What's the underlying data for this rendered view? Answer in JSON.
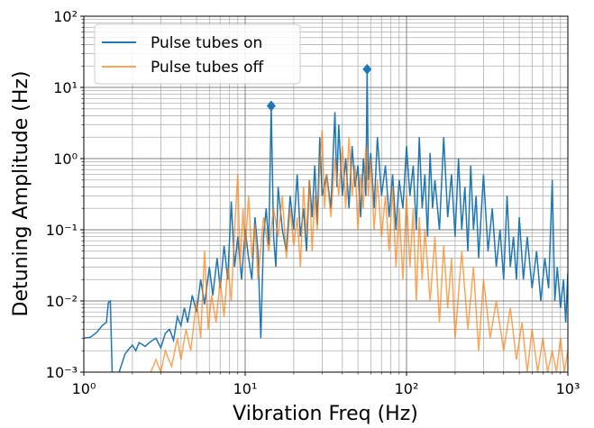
{
  "chart_data": {
    "type": "line",
    "xlabel": "Vibration Freq (Hz)",
    "ylabel": "Detuning Amplitude (Hz)",
    "log_x": true,
    "log_y": true,
    "grid": true,
    "minor_grid": true,
    "legend": "upper left",
    "xlim": [
      1,
      1000
    ],
    "ylim": [
      0.001,
      100
    ],
    "xticks": [
      {
        "value": 1,
        "label": "10⁰"
      },
      {
        "value": 10,
        "label": "10¹"
      },
      {
        "value": 100,
        "label": "10²"
      },
      {
        "value": 1000,
        "label": "10³"
      }
    ],
    "yticks": [
      {
        "value": 0.001,
        "label": "10⁻³"
      },
      {
        "value": 0.01,
        "label": "10⁻²"
      },
      {
        "value": 0.1,
        "label": "10⁻¹"
      },
      {
        "value": 1,
        "label": "10⁰"
      },
      {
        "value": 10,
        "label": "10¹"
      },
      {
        "value": 100,
        "label": "10²"
      }
    ],
    "series": [
      {
        "name": "Pulse tubes on",
        "color": "#1f77b4",
        "x": [
          1,
          1.1,
          1.2,
          1.3,
          1.38,
          1.42,
          1.46,
          1.5,
          1.6,
          1.7,
          1.8,
          1.9,
          2,
          2.1,
          2.2,
          2.4,
          2.6,
          2.8,
          3,
          3.2,
          3.4,
          3.6,
          3.8,
          4,
          4.2,
          4.4,
          4.7,
          5,
          5.3,
          5.6,
          6,
          6.3,
          6.7,
          7,
          7.4,
          7.8,
          8.2,
          8.6,
          9,
          9.5,
          10,
          10.5,
          11,
          11.5,
          12,
          12.5,
          13,
          13.5,
          14,
          14.5,
          15,
          15.5,
          16,
          17,
          18,
          19,
          20,
          21,
          22,
          23,
          24,
          25,
          26,
          27,
          28,
          29,
          30,
          32,
          34,
          36,
          37,
          38,
          40,
          42,
          44,
          46,
          48,
          50,
          52,
          54,
          56,
          57,
          58,
          60,
          63,
          66,
          70,
          74,
          78,
          82,
          86,
          90,
          95,
          100,
          105,
          110,
          115,
          120,
          125,
          130,
          135,
          140,
          145,
          150,
          160,
          170,
          180,
          190,
          200,
          210,
          220,
          230,
          240,
          250,
          260,
          270,
          280,
          300,
          320,
          340,
          360,
          380,
          400,
          420,
          440,
          460,
          480,
          500,
          530,
          560,
          600,
          640,
          680,
          720,
          760,
          800,
          830,
          860,
          900,
          940,
          970,
          1000
        ],
        "values": [
          0.003,
          0.0031,
          0.0036,
          0.0045,
          0.005,
          0.0095,
          0.01,
          0.0009,
          0.0008,
          0.0012,
          0.0018,
          0.0021,
          0.0024,
          0.002,
          0.0026,
          0.0023,
          0.0027,
          0.003,
          0.0022,
          0.0035,
          0.004,
          0.0028,
          0.006,
          0.0045,
          0.008,
          0.005,
          0.012,
          0.007,
          0.02,
          0.009,
          0.03,
          0.012,
          0.04,
          0.015,
          0.06,
          0.02,
          0.25,
          0.03,
          0.08,
          0.02,
          0.1,
          0.04,
          0.02,
          0.15,
          0.05,
          0.003,
          0.08,
          0.2,
          0.06,
          5.5,
          0.08,
          0.03,
          0.4,
          0.1,
          0.05,
          0.3,
          0.1,
          0.6,
          0.08,
          0.2,
          0.05,
          0.5,
          0.15,
          0.8,
          0.12,
          2,
          0.3,
          0.6,
          0.2,
          4.5,
          0.4,
          3,
          0.3,
          1,
          0.2,
          1.5,
          0.4,
          0.8,
          0.15,
          1,
          0.3,
          18,
          0.5,
          1.2,
          0.2,
          2,
          0.3,
          0.8,
          0.15,
          0.6,
          0.1,
          0.5,
          0.2,
          1.5,
          0.3,
          0.8,
          0.1,
          2,
          0.2,
          0.6,
          0.08,
          1.2,
          0.2,
          0.5,
          0.1,
          2,
          0.15,
          0.6,
          0.08,
          1,
          0.1,
          0.4,
          0.05,
          0.8,
          0.1,
          0.3,
          0.04,
          0.6,
          0.05,
          0.2,
          0.03,
          0.1,
          0.02,
          0.3,
          0.03,
          0.08,
          0.02,
          0.15,
          0.02,
          0.08,
          0.015,
          0.05,
          0.01,
          0.04,
          0.015,
          0.5,
          0.01,
          0.03,
          0.008,
          0.02,
          0.005,
          0.025
        ]
      },
      {
        "name": "Pulse tubes off",
        "color": "#ff7f0e",
        "x": [
          2.6,
          2.8,
          3,
          3.2,
          3.5,
          3.8,
          4,
          4.3,
          4.6,
          5,
          5.3,
          5.6,
          5.9,
          6.2,
          6.6,
          7,
          7.4,
          7.8,
          8.2,
          8.6,
          9,
          9.3,
          9.7,
          10,
          10.5,
          11,
          11.5,
          12,
          13,
          14,
          15,
          16,
          17,
          18,
          19,
          20,
          21,
          22,
          23,
          24,
          25,
          26,
          27,
          28,
          29,
          30,
          31,
          32,
          34,
          36,
          38,
          40,
          42,
          44,
          46,
          48,
          50,
          52,
          54,
          56,
          58,
          60,
          63,
          66,
          70,
          74,
          78,
          82,
          86,
          90,
          95,
          100,
          105,
          110,
          115,
          120,
          125,
          130,
          140,
          150,
          160,
          170,
          180,
          190,
          200,
          220,
          240,
          260,
          280,
          300,
          330,
          360,
          400,
          440,
          480,
          520,
          560,
          600,
          650,
          700,
          750,
          800,
          850,
          900,
          950,
          1000
        ],
        "values": [
          0.001,
          0.0015,
          0.001,
          0.002,
          0.0012,
          0.003,
          0.0015,
          0.004,
          0.002,
          0.01,
          0.003,
          0.05,
          0.004,
          0.012,
          0.005,
          0.02,
          0.006,
          0.03,
          0.01,
          0.1,
          0.6,
          0.03,
          0.2,
          0.05,
          0.3,
          0.04,
          0.12,
          0.02,
          0.15,
          0.05,
          0.2,
          0.08,
          0.3,
          0.04,
          0.2,
          0.06,
          0.15,
          0.03,
          0.4,
          0.08,
          0.5,
          0.05,
          0.3,
          0.1,
          0.8,
          2.5,
          0.2,
          0.6,
          0.15,
          1,
          0.3,
          1.5,
          0.2,
          2,
          0.3,
          0.8,
          0.1,
          0.6,
          0.2,
          1.5,
          0.3,
          1,
          0.1,
          0.5,
          0.08,
          0.3,
          0.05,
          0.4,
          0.03,
          0.2,
          0.02,
          0.3,
          0.03,
          0.2,
          0.01,
          0.15,
          0.02,
          0.1,
          0.01,
          0.08,
          0.005,
          0.06,
          0.008,
          0.04,
          0.003,
          0.05,
          0.004,
          0.03,
          0.002,
          0.02,
          0.003,
          0.01,
          0.002,
          0.008,
          0.0015,
          0.005,
          0.001,
          0.004,
          0.001,
          0.003,
          0.001,
          0.002,
          0.001,
          0.003,
          0.001,
          0.002
        ]
      }
    ],
    "peaks": {
      "color": "#1f77b4",
      "x": [
        14.5,
        57
      ],
      "values": [
        5.5,
        18
      ]
    }
  }
}
